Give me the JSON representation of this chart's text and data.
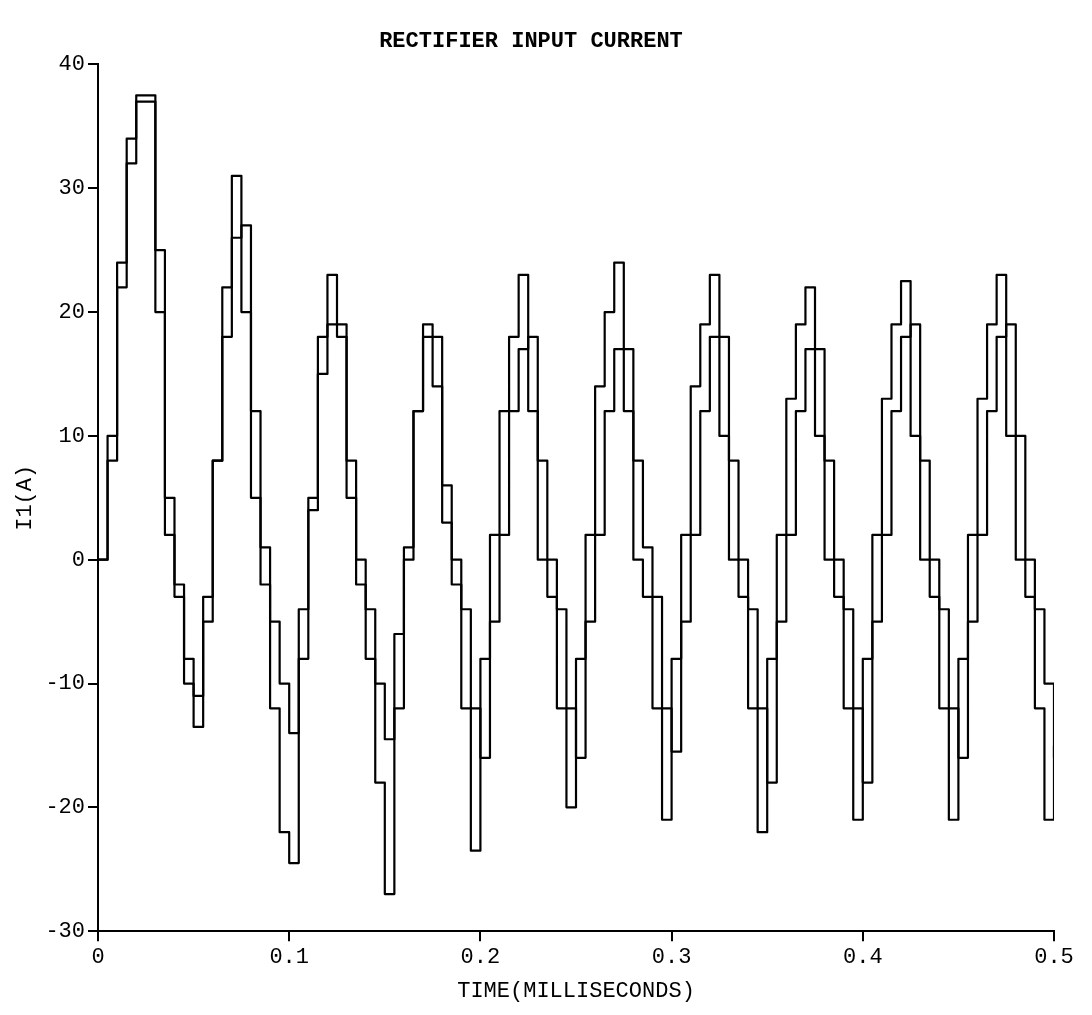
{
  "chart_data": {
    "type": "step",
    "title": "RECTIFIER INPUT CURRENT",
    "xlabel": "TIME(MILLISECONDS)",
    "ylabel": "I1(A)",
    "series": [
      {
        "color": "#000000",
        "x": [
          0,
          0.005,
          0.01,
          0.015,
          0.02,
          0.025,
          0.03,
          0.035,
          0.04,
          0.045,
          0.05,
          0.055,
          0.06,
          0.065,
          0.07,
          0.075,
          0.08,
          0.085,
          0.09,
          0.095,
          0.1,
          0.105,
          0.11,
          0.115,
          0.12,
          0.125,
          0.13,
          0.135,
          0.14,
          0.145,
          0.15,
          0.155,
          0.16,
          0.165,
          0.17,
          0.175,
          0.18,
          0.185,
          0.19,
          0.195,
          0.2,
          0.205,
          0.21,
          0.215,
          0.22,
          0.225,
          0.23,
          0.235,
          0.24,
          0.245,
          0.25,
          0.255,
          0.26,
          0.265,
          0.27,
          0.275,
          0.28,
          0.285,
          0.29,
          0.295,
          0.3,
          0.305,
          0.31,
          0.315,
          0.32,
          0.325,
          0.33,
          0.335,
          0.34,
          0.345,
          0.35,
          0.355,
          0.36,
          0.365,
          0.37,
          0.375,
          0.38,
          0.385,
          0.39,
          0.395,
          0.4,
          0.405,
          0.41,
          0.415,
          0.42,
          0.425,
          0.43,
          0.435,
          0.44,
          0.445,
          0.45,
          0.455,
          0.46,
          0.465,
          0.47,
          0.475,
          0.48,
          0.485,
          0.49,
          0.495,
          0.5
        ],
        "values": [
          0,
          10,
          24,
          34,
          37.5,
          37.5,
          20,
          2,
          -3,
          -10,
          -11,
          -5,
          8,
          22,
          31,
          20,
          5,
          -2,
          -12,
          -22,
          -24.5,
          -8,
          5,
          18,
          23,
          18,
          5,
          -2,
          -8,
          -18,
          -27,
          -12,
          0,
          12,
          19,
          14,
          3,
          -2,
          -12,
          -23.5,
          -8,
          2,
          12,
          18,
          23,
          12,
          0,
          -3,
          -12,
          -20,
          -8,
          2,
          14,
          20,
          24,
          12,
          0,
          -3,
          -12,
          -21,
          -8,
          2,
          14,
          19,
          23,
          10,
          0,
          -3,
          -12,
          -22,
          -8,
          2,
          13,
          19,
          22,
          10,
          0,
          -3,
          -12,
          -21,
          -8,
          2,
          13,
          19,
          22.5,
          10,
          0,
          -3,
          -12,
          -21,
          -8,
          2,
          13,
          19,
          23,
          10,
          0,
          -3,
          -12,
          -21,
          -15
        ]
      },
      {
        "color": "#000000",
        "x": [
          0,
          0.005,
          0.01,
          0.015,
          0.02,
          0.025,
          0.03,
          0.035,
          0.04,
          0.045,
          0.05,
          0.055,
          0.06,
          0.065,
          0.07,
          0.075,
          0.08,
          0.085,
          0.09,
          0.095,
          0.1,
          0.105,
          0.11,
          0.115,
          0.12,
          0.125,
          0.13,
          0.135,
          0.14,
          0.145,
          0.15,
          0.155,
          0.16,
          0.165,
          0.17,
          0.175,
          0.18,
          0.185,
          0.19,
          0.195,
          0.2,
          0.205,
          0.21,
          0.215,
          0.22,
          0.225,
          0.23,
          0.235,
          0.24,
          0.245,
          0.25,
          0.255,
          0.26,
          0.265,
          0.27,
          0.275,
          0.28,
          0.285,
          0.29,
          0.295,
          0.3,
          0.305,
          0.31,
          0.315,
          0.32,
          0.325,
          0.33,
          0.335,
          0.34,
          0.345,
          0.35,
          0.355,
          0.36,
          0.365,
          0.37,
          0.375,
          0.38,
          0.385,
          0.39,
          0.395,
          0.4,
          0.405,
          0.41,
          0.415,
          0.42,
          0.425,
          0.43,
          0.435,
          0.44,
          0.445,
          0.45,
          0.455,
          0.46,
          0.465,
          0.47,
          0.475,
          0.48,
          0.485,
          0.49,
          0.495,
          0.5
        ],
        "values": [
          0,
          8,
          22,
          32,
          37,
          37,
          25,
          5,
          -2,
          -8,
          -13.5,
          -3,
          8,
          18,
          26,
          27,
          12,
          1,
          -5,
          -10,
          -14,
          -4,
          4,
          15,
          19,
          19,
          8,
          0,
          -4,
          -10,
          -14.5,
          -6,
          1,
          12,
          18,
          18,
          6,
          0,
          -4,
          -12,
          -16,
          -5,
          2,
          12,
          17,
          18,
          8,
          0,
          -4,
          -12,
          -16,
          -5,
          2,
          12,
          17,
          17,
          8,
          1,
          -3,
          -12,
          -15.5,
          -5,
          2,
          12,
          18,
          18,
          8,
          0,
          -4,
          -12,
          -18,
          -5,
          2,
          12,
          17,
          17,
          8,
          0,
          -4,
          -12,
          -18,
          -5,
          2,
          12,
          18,
          19,
          8,
          0,
          -4,
          -12,
          -16,
          -5,
          2,
          12,
          18,
          19,
          10,
          0,
          -4,
          -10,
          -16
        ]
      }
    ],
    "xlim": [
      0,
      0.5
    ],
    "xticks": [
      0,
      0.1,
      0.2,
      0.3,
      0.4,
      0.5
    ],
    "ylim": [
      -30,
      40
    ],
    "yticks": [
      -30,
      -20,
      -10,
      0,
      10,
      20,
      30,
      40
    ],
    "grid": false,
    "legend": false
  }
}
